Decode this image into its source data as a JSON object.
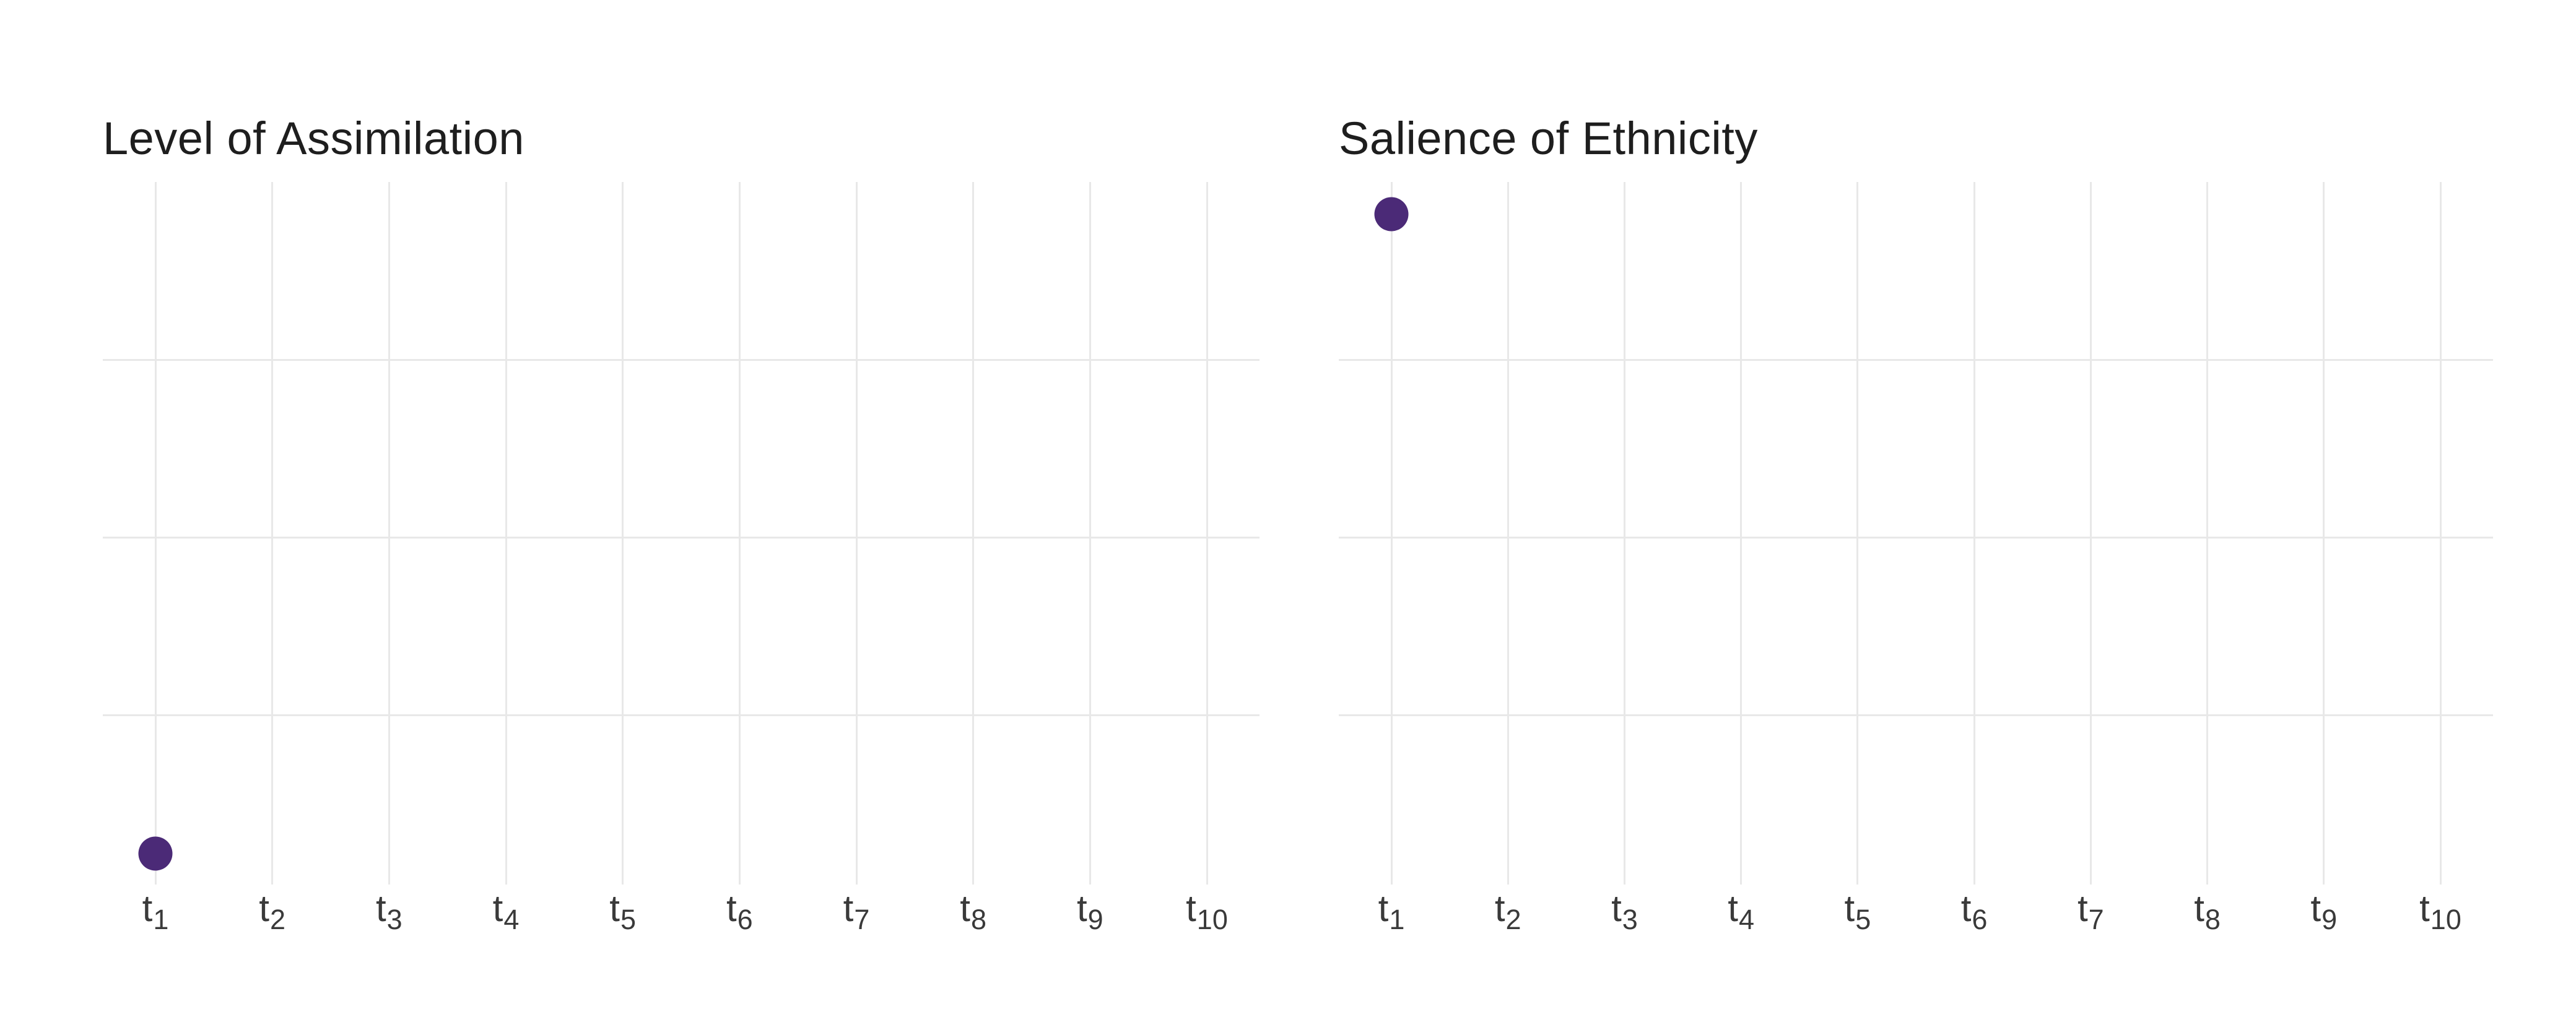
{
  "page": {
    "background": "#ffffff"
  },
  "colors": {
    "point": "#4b2a77",
    "gridline": "#e8e8e8",
    "title": "#1e1e1e",
    "axis_label": "#3a3a3a",
    "background": "#ffffff"
  },
  "chart_data": [
    {
      "type": "scatter",
      "title": "Level of Assimilation",
      "x": [
        {
          "id": "t1",
          "base": "t",
          "sub": "1"
        },
        {
          "id": "t2",
          "base": "t",
          "sub": "2"
        },
        {
          "id": "t3",
          "base": "t",
          "sub": "3"
        },
        {
          "id": "t4",
          "base": "t",
          "sub": "4"
        },
        {
          "id": "t5",
          "base": "t",
          "sub": "5"
        },
        {
          "id": "t6",
          "base": "t",
          "sub": "6"
        },
        {
          "id": "t7",
          "base": "t",
          "sub": "7"
        },
        {
          "id": "t8",
          "base": "t",
          "sub": "8"
        },
        {
          "id": "t9",
          "base": "t",
          "sub": "9"
        },
        {
          "id": "t10",
          "base": "t",
          "sub": "10"
        }
      ],
      "points": [
        {
          "x": "t1",
          "y": 0.055
        }
      ],
      "ylim": [
        0,
        1
      ],
      "y_axis_labels": "none",
      "grid": {
        "h_lines": [
          0.25,
          0.5,
          0.75
        ],
        "v_line_at_each_x": true
      },
      "legend": "none",
      "point_color": "#4b2a77"
    },
    {
      "type": "scatter",
      "title": "Salience of Ethnicity",
      "x": [
        {
          "id": "t1",
          "base": "t",
          "sub": "1"
        },
        {
          "id": "t2",
          "base": "t",
          "sub": "2"
        },
        {
          "id": "t3",
          "base": "t",
          "sub": "3"
        },
        {
          "id": "t4",
          "base": "t",
          "sub": "4"
        },
        {
          "id": "t5",
          "base": "t",
          "sub": "5"
        },
        {
          "id": "t6",
          "base": "t",
          "sub": "6"
        },
        {
          "id": "t7",
          "base": "t",
          "sub": "7"
        },
        {
          "id": "t8",
          "base": "t",
          "sub": "8"
        },
        {
          "id": "t9",
          "base": "t",
          "sub": "9"
        },
        {
          "id": "t10",
          "base": "t",
          "sub": "10"
        }
      ],
      "points": [
        {
          "x": "t1",
          "y": 0.955
        }
      ],
      "ylim": [
        0,
        1
      ],
      "y_axis_labels": "none",
      "grid": {
        "h_lines": [
          0.25,
          0.5,
          0.75
        ],
        "v_line_at_each_x": true
      },
      "legend": "none",
      "point_color": "#4b2a77"
    }
  ]
}
